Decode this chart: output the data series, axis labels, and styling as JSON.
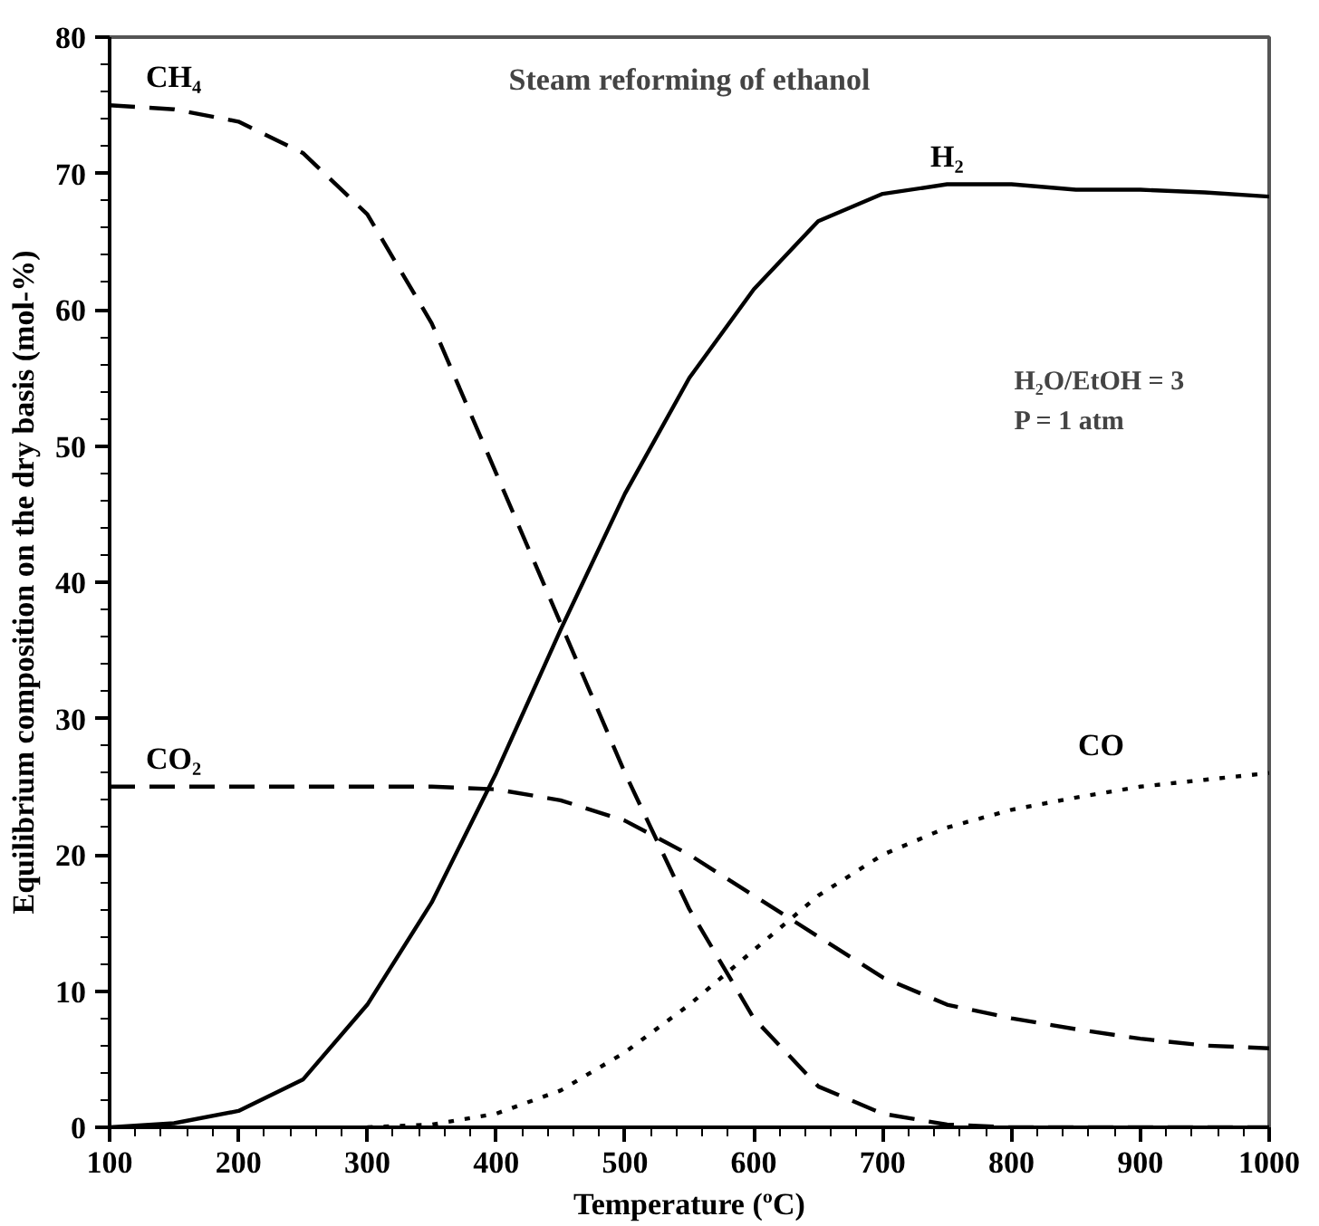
{
  "chart_data": {
    "type": "line",
    "title": "Steam reforming of ethanol",
    "xlabel": "Temperature (ºC)",
    "ylabel": "Equilibrium composition on the dry basis (mol-%)",
    "annotations": [
      "H₂O/EtOH = 3",
      "P = 1 atm"
    ],
    "x": [
      100,
      150,
      200,
      250,
      300,
      350,
      400,
      450,
      500,
      550,
      600,
      650,
      700,
      750,
      800,
      850,
      900,
      950,
      1000
    ],
    "series": [
      {
        "name": "CH₄",
        "color": "#000000",
        "line_style": "dashed",
        "values": [
          75,
          74.7,
          73.8,
          71.5,
          67,
          59,
          48,
          37,
          26,
          16,
          8,
          3,
          1,
          0.2,
          0,
          0,
          0,
          0,
          0
        ]
      },
      {
        "name": "H₂",
        "color": "#000000",
        "line_style": "solid",
        "values": [
          0,
          0.3,
          1.2,
          3.5,
          9,
          16.5,
          26,
          36.5,
          46.5,
          55,
          61.5,
          66.5,
          68.5,
          69.2,
          69.2,
          68.8,
          68.8,
          68.6,
          68.3
        ]
      },
      {
        "name": "CO₂",
        "color": "#000000",
        "line_style": "dashed",
        "values": [
          25,
          25,
          25,
          25,
          25,
          25,
          24.8,
          24,
          22.5,
          20,
          17,
          14,
          11,
          9,
          8,
          7.2,
          6.5,
          6,
          5.8
        ]
      },
      {
        "name": "CO",
        "color": "#000000",
        "line_style": "dotted",
        "values": [
          null,
          null,
          null,
          null,
          0,
          0.2,
          1,
          2.7,
          5.5,
          9,
          13,
          17,
          20,
          22,
          23.3,
          24.2,
          25,
          25.5,
          26
        ]
      }
    ],
    "xlim": [
      100,
      1000
    ],
    "ylim": [
      0,
      80
    ],
    "xticks": [
      100,
      200,
      300,
      400,
      500,
      600,
      700,
      800,
      900,
      1000
    ],
    "yticks": [
      0,
      10,
      20,
      30,
      40,
      50,
      60,
      70,
      80
    ],
    "grid": false,
    "marker": "none"
  }
}
